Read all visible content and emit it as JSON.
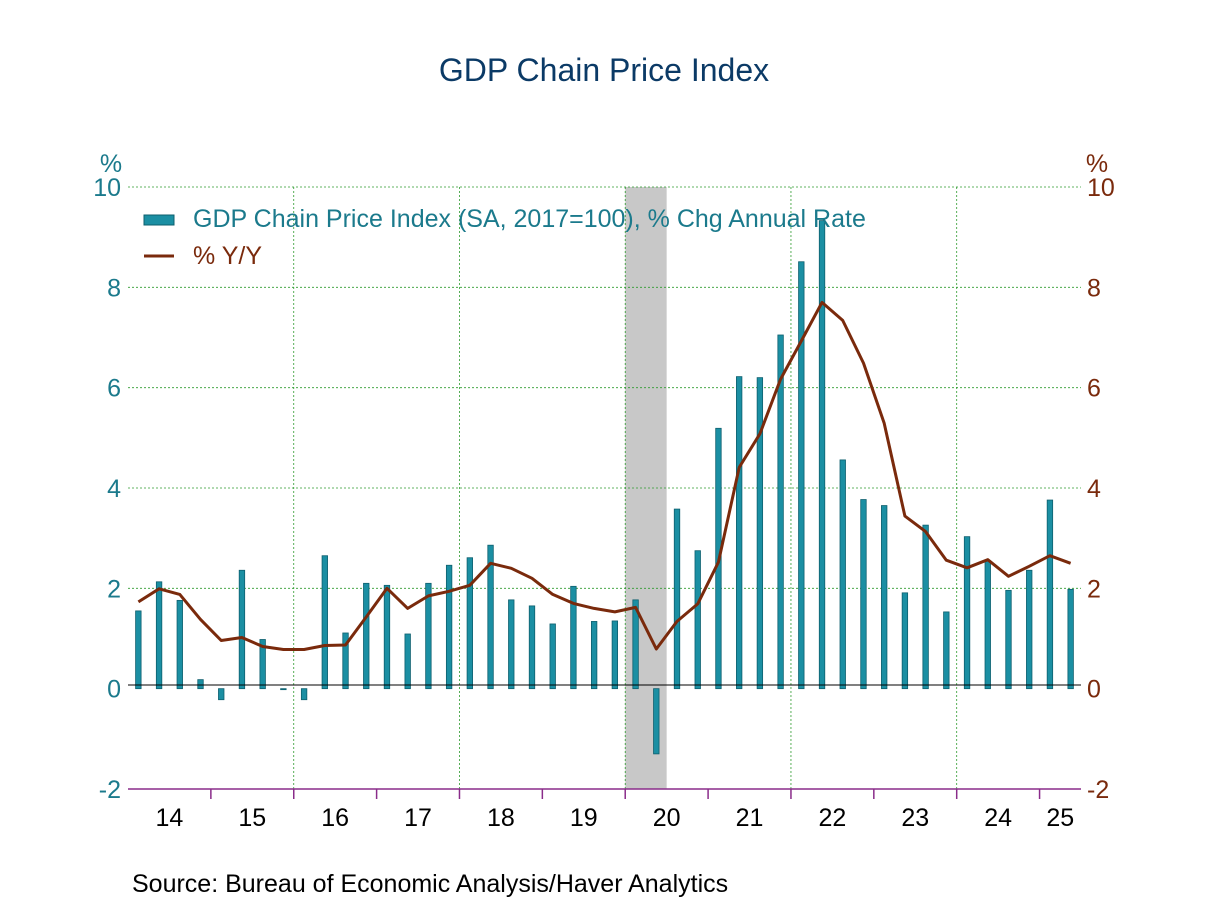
{
  "chart_data": {
    "type": "bar",
    "title": "GDP Chain Price Index",
    "left_axis": {
      "unit": "%",
      "ylim": [
        -2,
        10
      ],
      "ticks": [
        "-2",
        "0",
        "2",
        "4",
        "6",
        "8",
        "10"
      ]
    },
    "right_axis": {
      "unit": "%",
      "ylim": [
        -2,
        10
      ],
      "ticks": [
        "-2",
        "0",
        "2",
        "4",
        "6",
        "8",
        "10"
      ]
    },
    "x_tick_labels": [
      "14",
      "15",
      "16",
      "17",
      "18",
      "19",
      "20",
      "21",
      "22",
      "23",
      "24",
      "25"
    ],
    "grid": true,
    "legend_position": "top-left",
    "recession_shading": {
      "from": "2020Q1",
      "to": "2020Q2"
    },
    "categories": [
      "2014Q1",
      "2014Q2",
      "2014Q3",
      "2014Q4",
      "2015Q1",
      "2015Q2",
      "2015Q3",
      "2015Q4",
      "2016Q1",
      "2016Q2",
      "2016Q3",
      "2016Q4",
      "2017Q1",
      "2017Q2",
      "2017Q3",
      "2017Q4",
      "2018Q1",
      "2018Q2",
      "2018Q3",
      "2018Q4",
      "2019Q1",
      "2019Q2",
      "2019Q3",
      "2019Q4",
      "2020Q1",
      "2020Q2",
      "2020Q3",
      "2020Q4",
      "2021Q1",
      "2021Q2",
      "2021Q3",
      "2021Q4",
      "2022Q1",
      "2022Q2",
      "2022Q3",
      "2022Q4",
      "2023Q1",
      "2023Q2",
      "2023Q3",
      "2023Q4",
      "2024Q1",
      "2024Q2",
      "2024Q3",
      "2024Q4",
      "2025Q1",
      "2025Q2"
    ],
    "series": [
      {
        "name": "GDP Chain Price Index (SA, 2017=100), % Chg Annual Rate",
        "type": "bar",
        "axis": "left",
        "color": "#1b8fa3",
        "values": [
          1.55,
          2.13,
          1.76,
          0.18,
          -0.22,
          2.36,
          0.98,
          -0.02,
          -0.22,
          2.65,
          1.11,
          2.1,
          2.06,
          1.09,
          2.1,
          2.46,
          2.61,
          2.86,
          1.77,
          1.65,
          1.29,
          2.04,
          1.34,
          1.35,
          1.77,
          -1.3,
          3.58,
          2.75,
          5.19,
          6.22,
          6.2,
          7.05,
          8.51,
          9.33,
          4.56,
          3.77,
          3.65,
          1.91,
          3.26,
          1.53,
          3.03,
          2.55,
          1.96,
          2.36,
          3.76,
          1.98
        ]
      },
      {
        "name": "% Y/Y",
        "type": "line",
        "axis": "right",
        "color": "#7a2a0c",
        "values": [
          1.73,
          1.99,
          1.88,
          1.38,
          0.96,
          1.02,
          0.84,
          0.78,
          0.78,
          0.86,
          0.87,
          1.43,
          2.0,
          1.6,
          1.85,
          1.94,
          2.06,
          2.5,
          2.4,
          2.2,
          1.88,
          1.7,
          1.6,
          1.53,
          1.62,
          0.79,
          1.34,
          1.69,
          2.52,
          4.41,
          5.08,
          6.17,
          6.93,
          7.7,
          7.34,
          6.49,
          5.29,
          3.44,
          3.13,
          2.56,
          2.41,
          2.57,
          2.24,
          2.44,
          2.65,
          2.5
        ]
      }
    ]
  },
  "source_note": "Source:  Bureau of Economic Analysis/Haver Analytics",
  "colors": {
    "bar_fill": "#1b8fa3",
    "bar_stroke": "#0d5f6e",
    "line": "#7a2a0c",
    "grid": "#2e9b2e",
    "recession": "#c8c8c8",
    "left_axis_text": "#1b7a8c",
    "right_axis_text": "#7a2a0c",
    "title": "#0b3a66",
    "x_axis_line": "#8a2c8a"
  }
}
